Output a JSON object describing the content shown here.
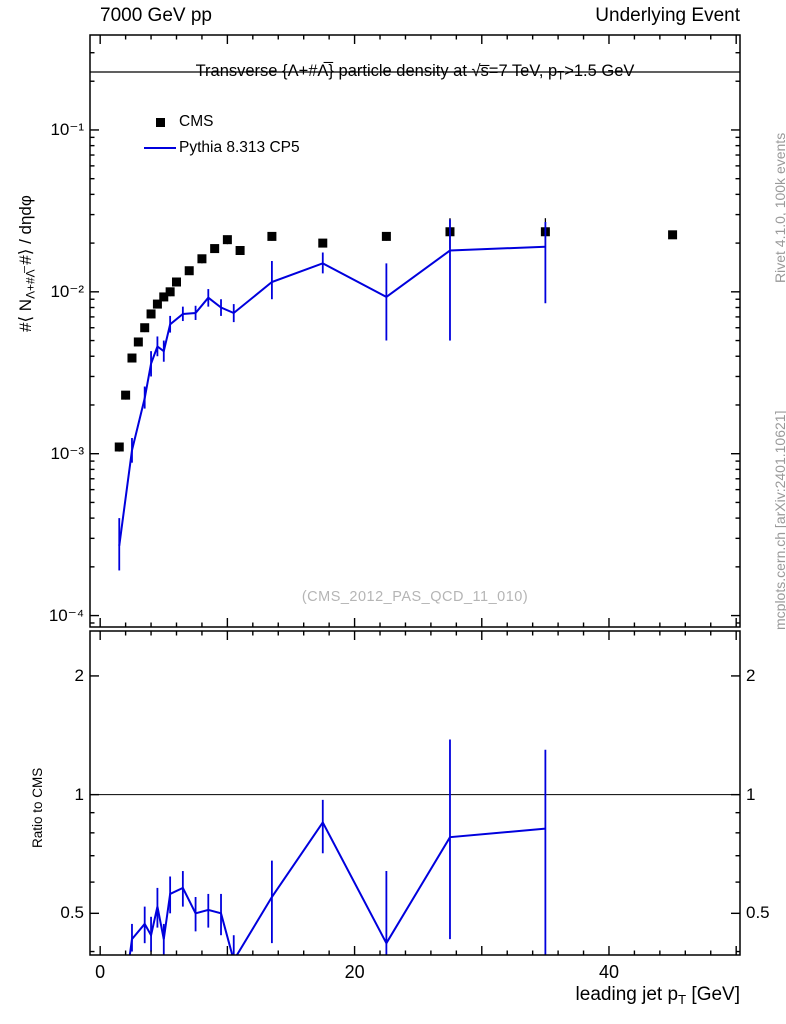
{
  "header": {
    "left": "7000 GeV pp",
    "right": "Underlying Event"
  },
  "side_notes": {
    "top": "Rivet 4.1.0,  100k events",
    "bottom": "mcplots.cern.ch [arXiv:2401.10621]"
  },
  "watermark": "(CMS_2012_PAS_QCD_11_010)",
  "title_parts": {
    "pre": "Transverse {Λ+#Λ̅} particle density at √s̅=7 TeV, p",
    "sub": "T",
    "post": ">1.5 GeV"
  },
  "axes": {
    "x_title": {
      "pre": "leading jet p",
      "sub": "T",
      "post": " [GeV]"
    },
    "y_title": {
      "pre": "#⟨ N",
      "sub": "Λ+#Λ̅",
      "post": " #⟩ / dηdφ"
    },
    "ratio_y_title": "Ratio to CMS"
  },
  "legend": {
    "items": [
      {
        "label": "CMS"
      },
      {
        "label": "Pythia 8.313 CP5"
      }
    ]
  },
  "colors": {
    "cms": "#000000",
    "pythia": "#0000dd",
    "frame": "#000000"
  },
  "chart_data": [
    {
      "id": "main",
      "type": "line",
      "title": "Transverse {Λ+#Λ̅} particle density at √s=7 TeV, pT>1.5 GeV",
      "xlabel": "leading jet pT [GeV]",
      "ylabel": "#⟨ N_{Λ+#Λ̅} #⟩ / dηdφ",
      "xscale": "linear",
      "yscale": "log",
      "xlim": [
        -0.8,
        50.3
      ],
      "ylim": [
        8.5e-05,
        0.386
      ],
      "x_minor_step": 2,
      "x_tick_labels": [],
      "y_tick_labels": [
        {
          "v": 0.0001,
          "label": "10⁻⁴"
        },
        {
          "v": 0.001,
          "label": "10⁻³"
        },
        {
          "v": 0.01,
          "label": "10⁻²"
        },
        {
          "v": 0.1,
          "label": "10⁻¹"
        }
      ],
      "long_ticks": [],
      "series": [
        {
          "name": "CMS",
          "type": "scatter",
          "marker": "square",
          "color": "#000000",
          "x": [
            1.5,
            2,
            2.5,
            3,
            3.5,
            4,
            4.5,
            5,
            5.5,
            6,
            7,
            8,
            9,
            10,
            11,
            13.5,
            17.5,
            22.5,
            27.5,
            35,
            45
          ],
          "y": [
            0.0011,
            0.0023,
            0.0039,
            0.0049,
            0.006,
            0.0073,
            0.0084,
            0.0093,
            0.01,
            0.0115,
            0.0135,
            0.016,
            0.0185,
            0.021,
            0.018,
            0.022,
            0.02,
            0.022,
            0.0235,
            0.0235,
            0.0225
          ],
          "ylo": [
            0.00103,
            0.00216,
            0.00367,
            0.00461,
            0.00564,
            0.00686,
            0.0079,
            0.00874,
            0.0094,
            0.0108,
            0.0127,
            0.015,
            0.0174,
            0.0197,
            0.0169,
            0.0207,
            0.0188,
            0.0207,
            0.0185,
            0.0185,
            0.0212
          ],
          "yhi": [
            0.00117,
            0.00244,
            0.00413,
            0.00519,
            0.00636,
            0.00774,
            0.0089,
            0.00986,
            0.0106,
            0.0122,
            0.0143,
            0.017,
            0.0196,
            0.0223,
            0.0191,
            0.0233,
            0.0212,
            0.0233,
            0.0285,
            0.0285,
            0.0239
          ]
        },
        {
          "name": "Pythia 8.313 CP5",
          "type": "line",
          "color": "#0000dd",
          "x": [
            1.5,
            2.5,
            3.5,
            4,
            4.5,
            5,
            5.5,
            6.5,
            7.5,
            8.5,
            9.5,
            10.5,
            13.5,
            17.5,
            22.5,
            27.5,
            35
          ],
          "y": [
            0.00027,
            0.00105,
            0.0022,
            0.0036,
            0.0046,
            0.0043,
            0.0063,
            0.0073,
            0.0074,
            0.0092,
            0.008,
            0.0074,
            0.0115,
            0.015,
            0.0093,
            0.018,
            0.019
          ],
          "ylo": [
            0.00019,
            0.00088,
            0.0019,
            0.003,
            0.004,
            0.0037,
            0.0056,
            0.0066,
            0.0067,
            0.0081,
            0.0071,
            0.0065,
            0.009,
            0.013,
            0.005,
            0.005,
            0.0085
          ],
          "yhi": [
            0.0004,
            0.00125,
            0.0026,
            0.0043,
            0.0053,
            0.005,
            0.0071,
            0.0081,
            0.0082,
            0.0104,
            0.009,
            0.0084,
            0.0155,
            0.0175,
            0.015,
            0.028,
            0.027
          ]
        }
      ]
    },
    {
      "id": "ratio",
      "type": "line",
      "ylabel": "Ratio to CMS",
      "xscale": "linear",
      "yscale": "log",
      "xlim": [
        -0.8,
        50.3
      ],
      "ylim": [
        0.392,
        2.6
      ],
      "x_minor_step": 2,
      "x_tick_labels": [
        {
          "v": 0,
          "label": "0"
        },
        {
          "v": 20,
          "label": "20"
        },
        {
          "v": 40,
          "label": "40"
        }
      ],
      "y_tick_labels": [
        {
          "v": 0.5,
          "label": "0.5"
        },
        {
          "v": 1,
          "label": "1"
        },
        {
          "v": 2,
          "label": "2"
        }
      ],
      "y_labels_both_sides": true,
      "long_ticks": [
        0.5,
        1,
        2
      ],
      "refline": 1,
      "series": [
        {
          "name": "Pythia 8.313 CP5 / CMS",
          "type": "line",
          "color": "#0000dd",
          "x": [
            1.5,
            2.5,
            3.5,
            4,
            4.5,
            5,
            5.5,
            6.5,
            7.5,
            8.5,
            9.5,
            10.5,
            13.5,
            17.5,
            22.5,
            27.5,
            35
          ],
          "y": [
            0.25,
            0.43,
            0.47,
            0.44,
            0.52,
            0.43,
            0.56,
            0.58,
            0.5,
            0.51,
            0.5,
            0.38,
            0.55,
            0.85,
            0.42,
            0.78,
            0.82
          ],
          "ylo": [
            0.22,
            0.4,
            0.42,
            0.4,
            0.46,
            0.39,
            0.5,
            0.52,
            0.45,
            0.46,
            0.44,
            0.33,
            0.42,
            0.71,
            0.36,
            0.43,
            0.38
          ],
          "yhi": [
            0.29,
            0.47,
            0.52,
            0.49,
            0.58,
            0.47,
            0.62,
            0.64,
            0.55,
            0.56,
            0.56,
            0.44,
            0.68,
            0.97,
            0.64,
            1.38,
            1.3
          ]
        }
      ]
    }
  ]
}
